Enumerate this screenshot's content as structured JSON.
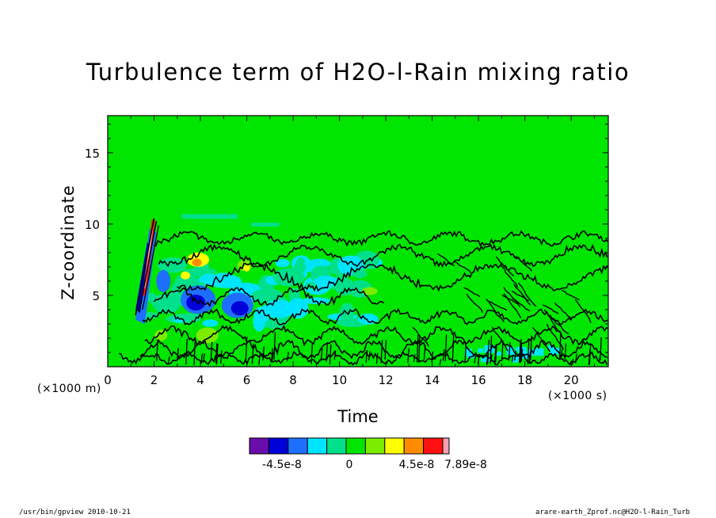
{
  "chart_data": {
    "type": "heatmap",
    "title": "Turbulence term of H2O-l-Rain mixing ratio",
    "xlabel": "Time",
    "ylabel": "Z-coordinate",
    "x_unit_label": "(×1000 s)",
    "y_unit_label": "(×1000 m)",
    "xlim": [
      0,
      21.6
    ],
    "ylim": [
      0,
      17.6
    ],
    "x_ticks": [
      0,
      2,
      4,
      6,
      8,
      10,
      12,
      14,
      16,
      18,
      20
    ],
    "y_ticks": [
      5,
      10,
      15
    ],
    "background_value": 0,
    "features": [
      {
        "name": "positive tilted band",
        "x": [
          1.2,
          2.0
        ],
        "z": [
          3.5,
          10.2
        ],
        "value": 8.5e-08
      },
      {
        "name": "negative column",
        "x": [
          1.0,
          2.0
        ],
        "z": [
          3.0,
          9.5
        ],
        "value": -6e-08
      },
      {
        "name": "negative patch",
        "x": [
          3.2,
          4.6
        ],
        "z": [
          3.5,
          6.0
        ],
        "value": -5e-08
      },
      {
        "name": "negative patch",
        "x": [
          5.0,
          6.3
        ],
        "z": [
          3.3,
          5.5
        ],
        "value": -5e-08
      },
      {
        "name": "positive patch",
        "x": [
          3.2,
          4.0
        ],
        "z": [
          6.5,
          7.5
        ],
        "value": 6e-08
      },
      {
        "name": "positive patch",
        "x": [
          5.7,
          6.4
        ],
        "z": [
          6.5,
          7.5
        ],
        "value": 4e-08
      },
      {
        "name": "weak turbulent layer",
        "x": [
          1.5,
          21.6
        ],
        "z": [
          0.5,
          9.5
        ],
        "value": 1e-08
      }
    ],
    "colorbar": {
      "colors": [
        "#6a0dad",
        "#0000d8",
        "#1f6fff",
        "#00e5ff",
        "#00e08a",
        "#00e600",
        "#7cec00",
        "#ffff00",
        "#ff8c00",
        "#ff1010",
        "#f8a0b0"
      ],
      "tick_labels": [
        "-4.5e-8",
        "0",
        "4.5e-8",
        "7.89e-8"
      ]
    },
    "footer_left": "/usr/bin/gpview   2010-10-21",
    "footer_right": "arare-earth_Zprof.nc@H2O-l-Rain_Turb"
  }
}
